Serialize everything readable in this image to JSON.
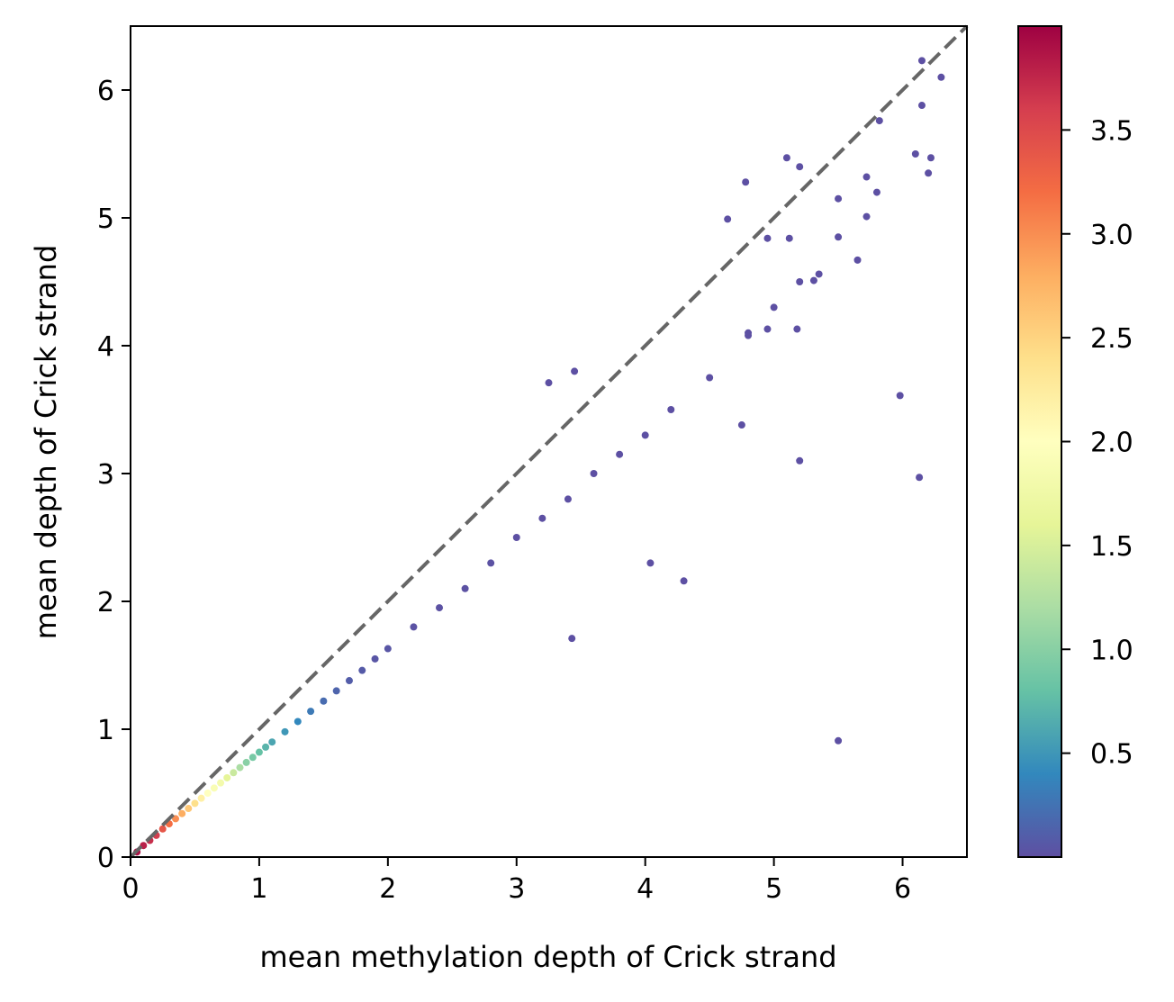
{
  "chart_data": {
    "type": "scatter",
    "title": "",
    "xlabel": "mean methylation depth of Crick strand",
    "ylabel": "mean depth of Crick strand",
    "xlim": [
      0,
      6.5
    ],
    "ylim": [
      0,
      6.5
    ],
    "x_ticks": [
      "0",
      "1",
      "2",
      "3",
      "4",
      "5",
      "6"
    ],
    "y_ticks": [
      "0",
      "1",
      "2",
      "3",
      "4",
      "5",
      "6"
    ],
    "grid": false,
    "reference_line": {
      "style": "dashed",
      "color": "#666666",
      "from": [
        0,
        0
      ],
      "to": [
        6.5,
        6.5
      ]
    },
    "colormap": "Spectral_r",
    "color_range": [
      0.0,
      4.0
    ],
    "colorbar_ticks": [
      "0.5",
      "1.0",
      "1.5",
      "2.0",
      "2.5",
      "3.0",
      "3.5"
    ],
    "points_sample": [
      [
        0.05,
        0.04,
        3.9
      ],
      [
        0.1,
        0.09,
        3.8
      ],
      [
        0.15,
        0.13,
        3.7
      ],
      [
        0.2,
        0.17,
        3.6
      ],
      [
        0.25,
        0.22,
        3.4
      ],
      [
        0.3,
        0.26,
        3.2
      ],
      [
        0.35,
        0.3,
        3.0
      ],
      [
        0.4,
        0.34,
        2.8
      ],
      [
        0.45,
        0.38,
        2.6
      ],
      [
        0.5,
        0.42,
        2.4
      ],
      [
        0.55,
        0.46,
        2.2
      ],
      [
        0.6,
        0.5,
        2.0
      ],
      [
        0.65,
        0.54,
        1.9
      ],
      [
        0.7,
        0.58,
        1.8
      ],
      [
        0.75,
        0.62,
        1.6
      ],
      [
        0.8,
        0.66,
        1.4
      ],
      [
        0.85,
        0.7,
        1.2
      ],
      [
        0.9,
        0.74,
        1.0
      ],
      [
        0.95,
        0.78,
        0.9
      ],
      [
        1.0,
        0.82,
        0.8
      ],
      [
        1.05,
        0.86,
        0.7
      ],
      [
        1.1,
        0.9,
        0.6
      ],
      [
        1.2,
        0.98,
        0.5
      ],
      [
        1.3,
        1.06,
        0.4
      ],
      [
        1.4,
        1.14,
        0.3
      ],
      [
        1.5,
        1.22,
        0.2
      ],
      [
        1.6,
        1.3,
        0.15
      ],
      [
        1.7,
        1.38,
        0.1
      ],
      [
        1.8,
        1.46,
        0.08
      ],
      [
        1.9,
        1.55,
        0.05
      ],
      [
        2.0,
        1.63,
        0.05
      ],
      [
        2.2,
        1.8,
        0.03
      ],
      [
        2.4,
        1.95,
        0.02
      ],
      [
        2.6,
        2.1,
        0.02
      ],
      [
        2.8,
        2.3,
        0.02
      ],
      [
        3.0,
        2.5,
        0.01
      ],
      [
        3.2,
        2.65,
        0.01
      ],
      [
        3.4,
        2.8,
        0.01
      ],
      [
        3.6,
        3.0,
        0.01
      ],
      [
        3.8,
        3.15,
        0.01
      ],
      [
        4.0,
        3.3,
        0.01
      ],
      [
        4.2,
        3.5,
        0.01
      ],
      [
        4.5,
        3.75,
        0.01
      ],
      [
        4.8,
        4.1,
        0.01
      ],
      [
        5.0,
        4.3,
        0.01
      ],
      [
        5.2,
        4.5,
        0.01
      ],
      [
        5.5,
        4.85,
        0.01
      ],
      [
        5.8,
        5.2,
        0.01
      ],
      [
        6.1,
        5.5,
        0.01
      ],
      [
        6.3,
        6.1,
        0.01
      ],
      [
        6.15,
        6.23,
        0.01
      ],
      [
        6.15,
        5.88,
        0.01
      ],
      [
        6.22,
        5.47,
        0.01
      ],
      [
        6.2,
        5.35,
        0.01
      ],
      [
        5.82,
        5.76,
        0.01
      ],
      [
        5.72,
        5.32,
        0.01
      ],
      [
        5.72,
        5.01,
        0.01
      ],
      [
        5.65,
        4.67,
        0.01
      ],
      [
        5.5,
        5.15,
        0.01
      ],
      [
        5.35,
        4.56,
        0.01
      ],
      [
        5.31,
        4.51,
        0.01
      ],
      [
        5.1,
        5.47,
        0.01
      ],
      [
        5.2,
        5.4,
        0.01
      ],
      [
        5.12,
        4.84,
        0.01
      ],
      [
        4.95,
        4.84,
        0.01
      ],
      [
        4.78,
        5.28,
        0.01
      ],
      [
        4.64,
        4.99,
        0.01
      ],
      [
        5.5,
        0.91,
        0.01
      ],
      [
        6.13,
        2.97,
        0.01
      ],
      [
        5.98,
        3.61,
        0.01
      ],
      [
        5.2,
        3.1,
        0.01
      ],
      [
        5.18,
        4.13,
        0.01
      ],
      [
        4.8,
        4.08,
        0.01
      ],
      [
        4.95,
        4.13,
        0.01
      ],
      [
        4.75,
        3.38,
        0.01
      ],
      [
        4.3,
        2.16,
        0.01
      ],
      [
        4.04,
        2.3,
        0.01
      ],
      [
        3.43,
        1.71,
        0.01
      ],
      [
        3.45,
        3.8,
        0.01
      ],
      [
        3.25,
        3.71,
        0.01
      ]
    ]
  }
}
